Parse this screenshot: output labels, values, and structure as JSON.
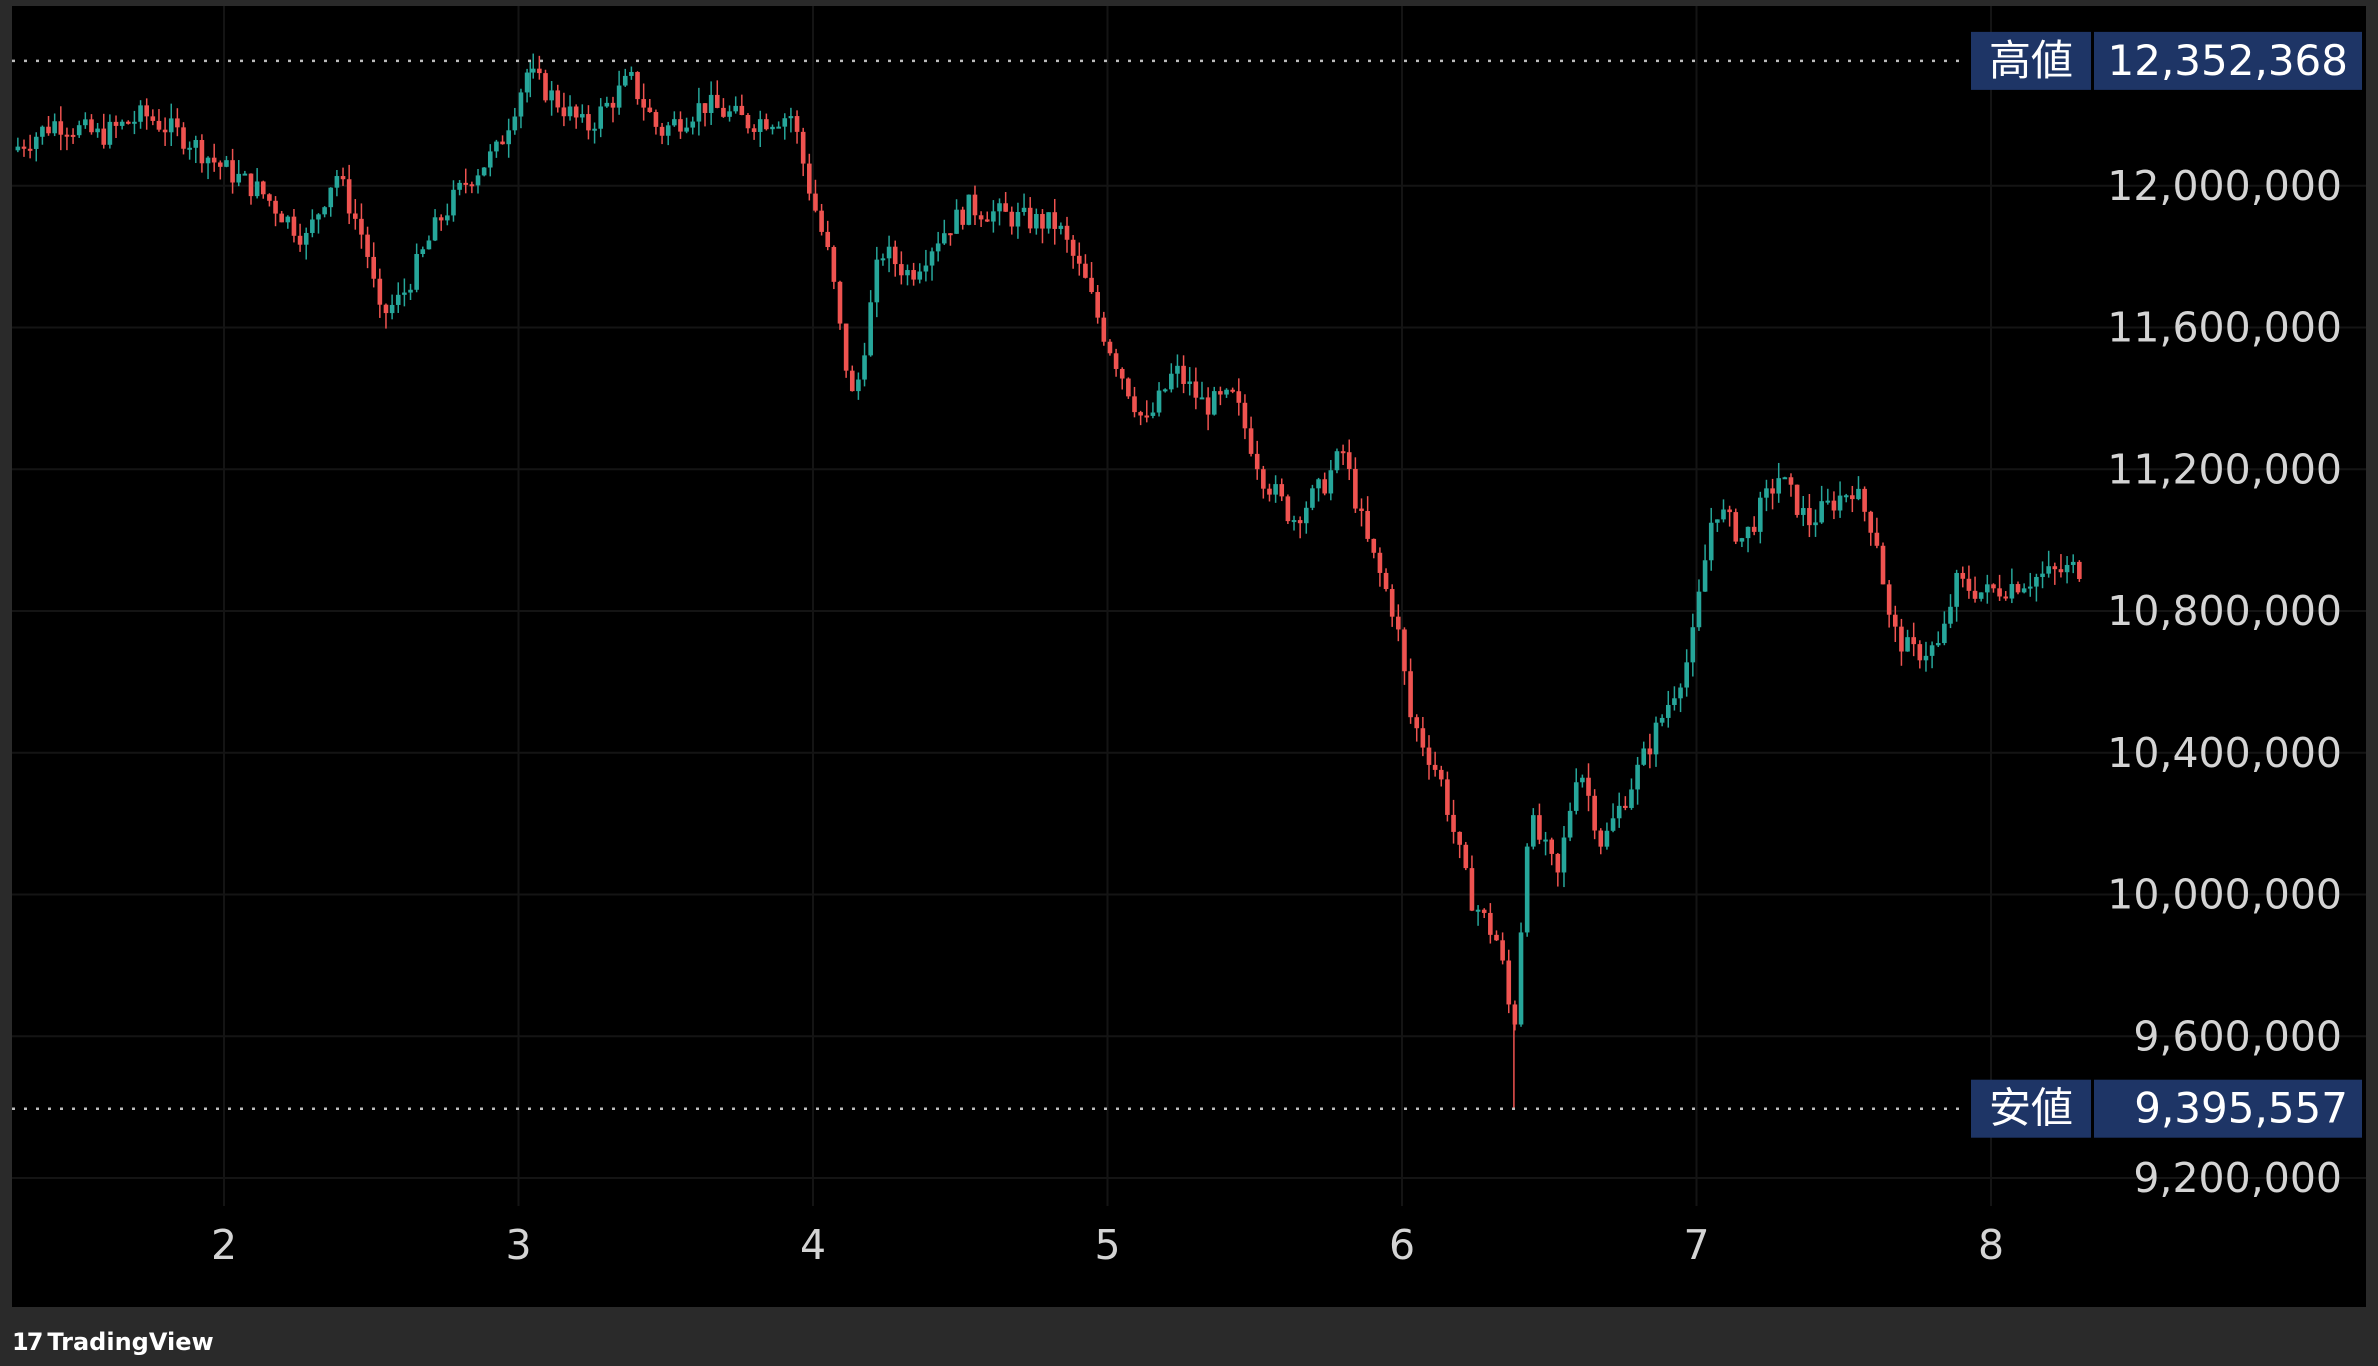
{
  "chart_data": {
    "type": "candlestick",
    "y_range": [
      9200000,
      12400000
    ],
    "y_ticks": [
      {
        "value": 12000000,
        "label": "12,000,000"
      },
      {
        "value": 11600000,
        "label": "11,600,000"
      },
      {
        "value": 11200000,
        "label": "11,200,000"
      },
      {
        "value": 10800000,
        "label": "10,800,000"
      },
      {
        "value": 10400000,
        "label": "10,400,000"
      },
      {
        "value": 10000000,
        "label": "10,000,000"
      },
      {
        "value": 9600000,
        "label": "9,600,000"
      },
      {
        "value": 9200000,
        "label": "9,200,000"
      }
    ],
    "x_ticks": [
      "2",
      "3",
      "4",
      "5",
      "6",
      "7",
      "8"
    ],
    "high": {
      "label": "高値",
      "value": 12352368,
      "value_label": "12,352,368"
    },
    "low": {
      "label": "安値",
      "value": 9395557,
      "value_label": "9,395,557"
    },
    "price_path": [
      [
        1.3,
        12100000
      ],
      [
        1.45,
        12180000
      ],
      [
        1.6,
        12140000
      ],
      [
        1.75,
        12200000
      ],
      [
        1.9,
        12130000
      ],
      [
        2.0,
        12060000
      ],
      [
        2.15,
        11980000
      ],
      [
        2.3,
        11850000
      ],
      [
        2.4,
        12040000
      ],
      [
        2.5,
        11840000
      ],
      [
        2.55,
        11630000
      ],
      [
        2.62,
        11680000
      ],
      [
        2.75,
        11900000
      ],
      [
        2.85,
        12020000
      ],
      [
        2.95,
        12100000
      ],
      [
        3.05,
        12320000
      ],
      [
        3.15,
        12240000
      ],
      [
        3.25,
        12160000
      ],
      [
        3.4,
        12300000
      ],
      [
        3.5,
        12150000
      ],
      [
        3.65,
        12230000
      ],
      [
        3.8,
        12180000
      ],
      [
        3.95,
        12200000
      ],
      [
        4.0,
        12020000
      ],
      [
        4.08,
        11780000
      ],
      [
        4.12,
        11550000
      ],
      [
        4.16,
        11380000
      ],
      [
        4.25,
        11820000
      ],
      [
        4.35,
        11750000
      ],
      [
        4.45,
        11860000
      ],
      [
        4.55,
        11940000
      ],
      [
        4.7,
        11910000
      ],
      [
        4.85,
        11890000
      ],
      [
        4.95,
        11720000
      ],
      [
        5.0,
        11600000
      ],
      [
        5.08,
        11450000
      ],
      [
        5.15,
        11320000
      ],
      [
        5.25,
        11480000
      ],
      [
        5.35,
        11380000
      ],
      [
        5.45,
        11400000
      ],
      [
        5.55,
        11180000
      ],
      [
        5.65,
        11060000
      ],
      [
        5.75,
        11150000
      ],
      [
        5.82,
        11250000
      ],
      [
        5.9,
        11000000
      ],
      [
        5.97,
        10850000
      ],
      [
        6.0,
        10780000
      ],
      [
        6.05,
        10500000
      ],
      [
        6.15,
        10330000
      ],
      [
        6.25,
        10000000
      ],
      [
        6.35,
        9860000
      ],
      [
        6.4,
        9600000
      ],
      [
        6.45,
        10220000
      ],
      [
        6.55,
        10050000
      ],
      [
        6.62,
        10380000
      ],
      [
        6.7,
        10140000
      ],
      [
        6.85,
        10400000
      ],
      [
        7.0,
        10680000
      ],
      [
        7.08,
        11100000
      ],
      [
        7.18,
        11000000
      ],
      [
        7.3,
        11180000
      ],
      [
        7.4,
        11050000
      ],
      [
        7.55,
        11150000
      ],
      [
        7.63,
        11020000
      ],
      [
        7.68,
        10750000
      ],
      [
        7.75,
        10680000
      ],
      [
        7.85,
        10700000
      ],
      [
        7.9,
        10880000
      ],
      [
        8.0,
        10850000
      ],
      [
        8.15,
        10890000
      ],
      [
        8.3,
        10920000
      ]
    ]
  }
}
